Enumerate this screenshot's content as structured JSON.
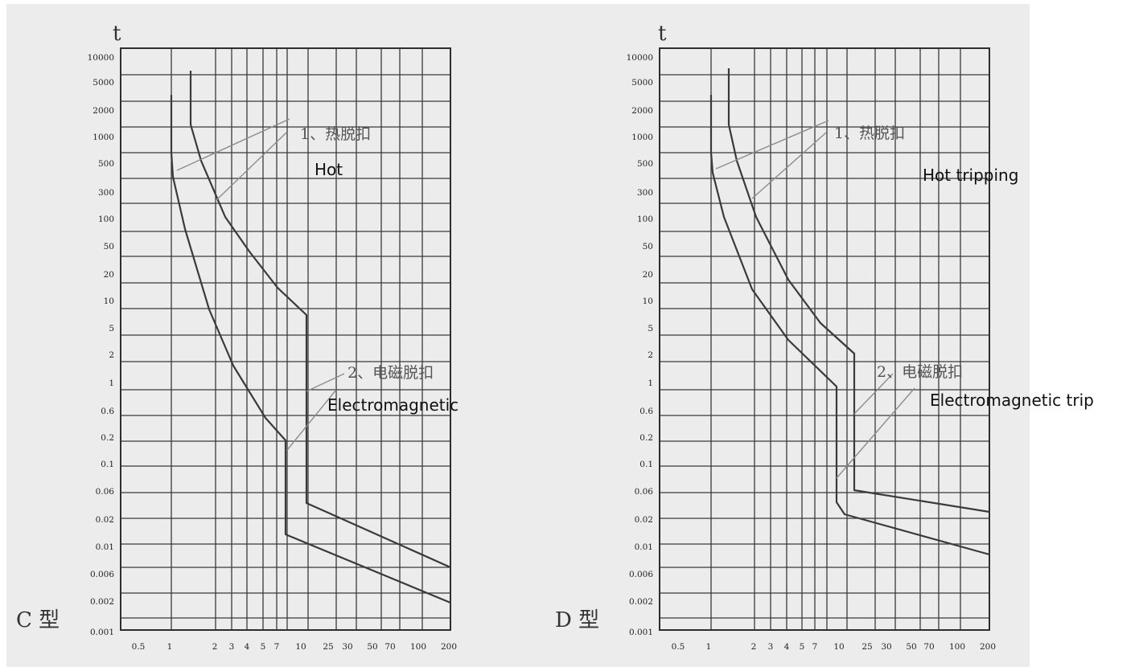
{
  "chart_data": [
    {
      "type": "line",
      "yscale": "log",
      "ylabel": "t",
      "ylim": [
        0.001,
        10000
      ],
      "xlim": [
        0.5,
        200
      ],
      "x_ticks": [
        "0.5",
        "1",
        "2",
        "3",
        "4",
        "5",
        "7",
        "10",
        "25",
        "30",
        "50",
        "70",
        "100",
        "200"
      ],
      "y_ticks": [
        "10000",
        "5000",
        "2000",
        "1000",
        "500",
        "300",
        "100",
        "50",
        "20",
        "10",
        "5",
        "2",
        "1",
        "0.6",
        "0.2",
        "0.1",
        "0.06",
        "0.02",
        "0.01",
        "0.006",
        "0.002",
        "0.001"
      ],
      "grid": true,
      "type_label": "C 型",
      "annotations": [
        {
          "cn": "1、热脱扣",
          "en": "Hot"
        },
        {
          "cn": "2、电磁脱扣",
          "en": "Electromagnetic"
        }
      ],
      "series": [
        {
          "points": [
            [
              1,
              3000
            ],
            [
              1,
              1000
            ],
            [
              1,
              500
            ],
            [
              2,
              2
            ],
            [
              4,
              0.4
            ],
            [
              7,
              0.2
            ],
            [
              7,
              0.14
            ],
            [
              7,
              0.01
            ],
            [
              200,
              0.0016
            ]
          ]
        },
        {
          "points": [
            [
              1.3,
              6000
            ],
            [
              1.3,
              1200
            ],
            [
              2,
              200
            ],
            [
              3,
              60
            ],
            [
              5,
              20
            ],
            [
              8,
              8
            ],
            [
              10,
              8
            ],
            [
              10,
              0.03
            ],
            [
              200,
              0.005
            ]
          ]
        }
      ]
    },
    {
      "type": "line",
      "yscale": "log",
      "ylabel": "t",
      "ylim": [
        0.001,
        10000
      ],
      "xlim": [
        0.5,
        200
      ],
      "x_ticks": [
        "0.5",
        "1",
        "2",
        "3",
        "4",
        "5",
        "7",
        "10",
        "25",
        "30",
        "50",
        "70",
        "100",
        "200"
      ],
      "y_ticks": [
        "10000",
        "5000",
        "2000",
        "1000",
        "500",
        "300",
        "100",
        "50",
        "20",
        "10",
        "5",
        "2",
        "1",
        "0.6",
        "0.2",
        "0.1",
        "0.06",
        "0.02",
        "0.01",
        "0.006",
        "0.002",
        "0.001"
      ],
      "grid": true,
      "type_label": "D 型",
      "annotations": [
        {
          "cn": "1、热脱扣",
          "en": "Hot  tripping"
        },
        {
          "cn": "2、电磁脱扣",
          "en": "Electromagnetic trip"
        }
      ],
      "series": [
        {
          "points": [
            [
              1,
              3000
            ],
            [
              1,
              1000
            ],
            [
              1,
              500
            ],
            [
              2,
              10
            ],
            [
              4,
              2
            ],
            [
              8,
              1
            ],
            [
              8,
              0.04
            ],
            [
              9,
              0.02
            ],
            [
              200,
              0.008
            ]
          ]
        },
        {
          "points": [
            [
              1.3,
              6000
            ],
            [
              1.3,
              1200
            ],
            [
              2,
              200
            ],
            [
              3,
              50
            ],
            [
              5,
              10
            ],
            [
              8,
              2.2
            ],
            [
              10,
              2.2
            ],
            [
              10,
              0.06
            ],
            [
              200,
              0.04
            ]
          ]
        }
      ]
    }
  ]
}
